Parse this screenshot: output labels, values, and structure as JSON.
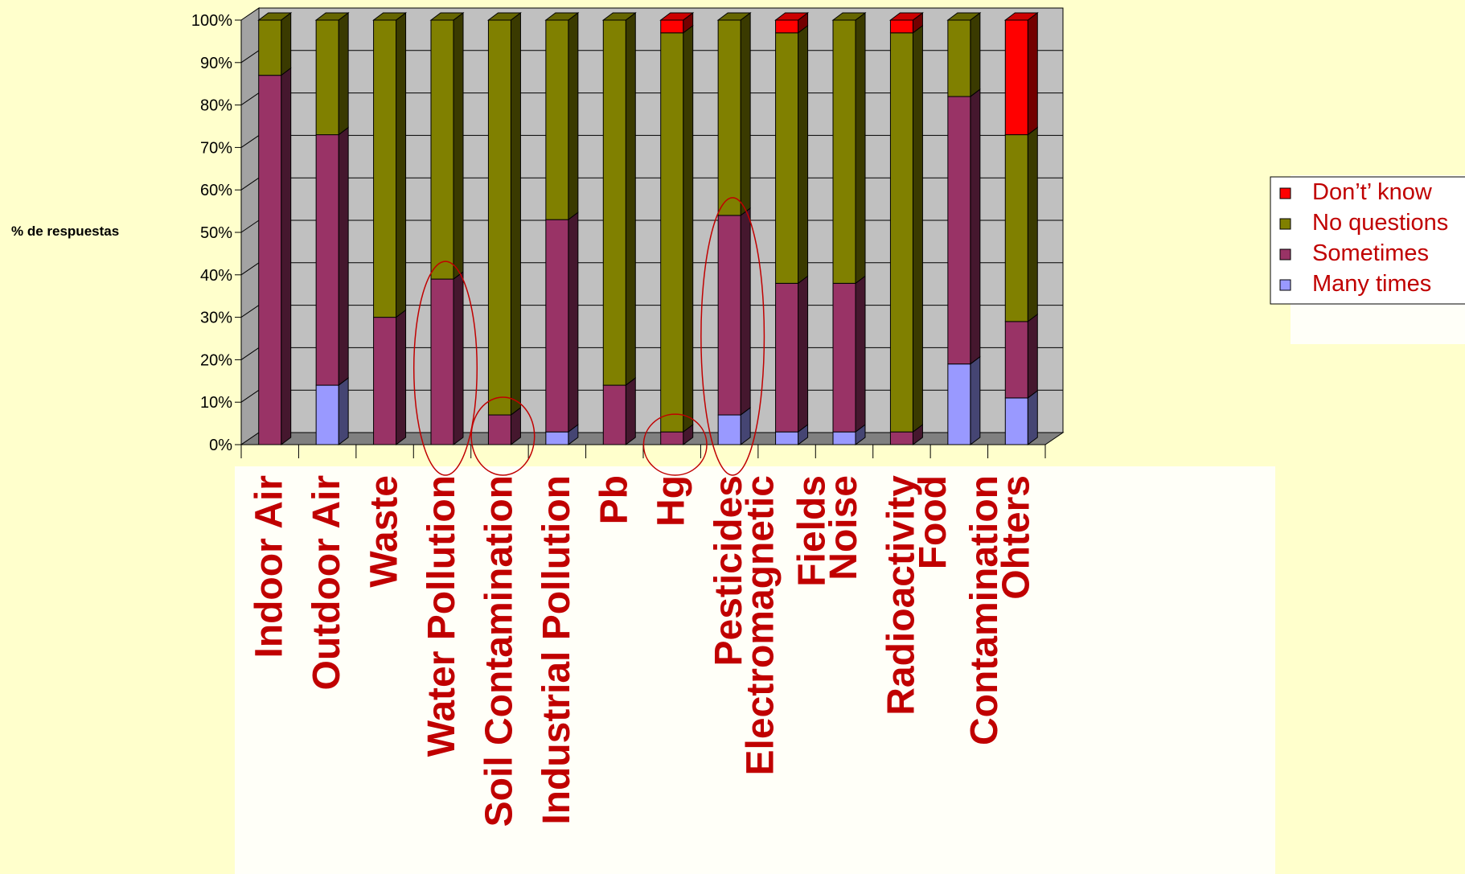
{
  "chart_data": {
    "type": "bar",
    "stacked": true,
    "percent": true,
    "three_d": true,
    "ylabel": "% de respuestas",
    "xlabel": "",
    "ylim": [
      0,
      100
    ],
    "yticks": [
      "0%",
      "10%",
      "20%",
      "30%",
      "40%",
      "50%",
      "60%",
      "70%",
      "80%",
      "90%",
      "100%"
    ],
    "grid": true,
    "legend_position": "right",
    "categories": [
      "Indoor Air",
      "Outdoor Air",
      "Waste",
      "Water Pollution",
      "Soil Contamination",
      "Industrial Pollution",
      "Pb",
      "Hg",
      "Pesticides",
      "Electromagnetic Fields",
      "Noise",
      "Radioactivity",
      "Food Contamination",
      "Ohters"
    ],
    "category_lines": [
      [
        "Indoor Air"
      ],
      [
        "Outdoor Air"
      ],
      [
        "Waste"
      ],
      [
        "Water Pollution"
      ],
      [
        "Soil Contamination"
      ],
      [
        "Industrial Pollution"
      ],
      [
        "Pb"
      ],
      [
        "Hg"
      ],
      [
        "Pesticides"
      ],
      [
        "Electromagnetic",
        "Fields"
      ],
      [
        "Noise"
      ],
      [
        "Radioactivity"
      ],
      [
        "Food",
        "Contamination"
      ],
      [
        "Ohters"
      ]
    ],
    "series": [
      {
        "name": "Many times",
        "color": "#9999FF",
        "values": [
          0,
          14,
          0,
          0,
          0,
          3,
          0,
          0,
          7,
          3,
          3,
          0,
          19,
          11
        ]
      },
      {
        "name": "Sometimes",
        "color": "#993366",
        "values": [
          87,
          59,
          30,
          39,
          7,
          50,
          14,
          3,
          47,
          35,
          35,
          3,
          63,
          18
        ]
      },
      {
        "name": "No questions",
        "color": "#808000",
        "values": [
          13,
          27,
          70,
          61,
          93,
          47,
          86,
          94,
          46,
          59,
          62,
          94,
          18,
          44
        ]
      },
      {
        "name": "Don’t’ know",
        "color": "#FF0000",
        "values": [
          0,
          0,
          0,
          0,
          0,
          0,
          0,
          3,
          0,
          3,
          0,
          3,
          0,
          27
        ]
      }
    ],
    "legend_order": [
      "Don’t’ know",
      "No questions",
      "Sometimes",
      "Many times"
    ],
    "highlighted_categories": [
      "Water Pollution",
      "Soil Contamination",
      "Hg",
      "Pesticides"
    ],
    "highlight_color": "#C00000",
    "category_label_color": "#C00000",
    "legend_text_color": "#C00000",
    "plot_wall_color": "#C0C0C0",
    "plot_floor_color": "#808080"
  }
}
